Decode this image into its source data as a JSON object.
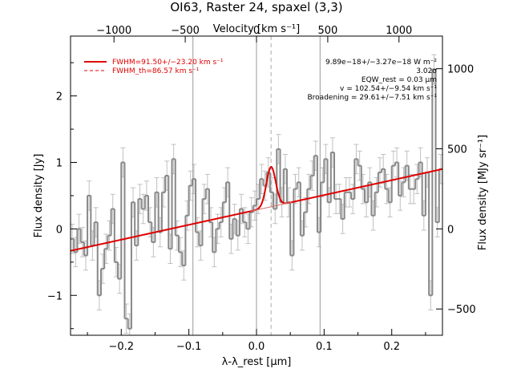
{
  "chart_data": {
    "type": "line",
    "title": "OI63, Raster 24, spaxel (3,3)",
    "xlabel": "λ-λ_rest [μm]",
    "ylabel": "Flux density [Jy]",
    "top_xlabel": "Velocity [km s⁻¹]",
    "right_ylabel": "Flux density [MJy sr⁻¹]",
    "xlim": [
      -0.275,
      0.275
    ],
    "ylim": [
      -1.6,
      2.9
    ],
    "x_ticks": [
      -0.2,
      -0.1,
      0.0,
      0.1,
      0.2
    ],
    "x_tick_labels": [
      "−0.2",
      "−0.1",
      "0.0",
      "0.1",
      "0.2"
    ],
    "y_ticks": [
      -1,
      0,
      1,
      2
    ],
    "y_tick_labels": [
      "−1",
      "0",
      "1",
      "2"
    ],
    "top_ticks_kms": [
      -1000,
      -500,
      0,
      500,
      1000
    ],
    "top_tick_labels": [
      "−1000",
      "−500",
      "0",
      "500",
      "1000"
    ],
    "right_ticks": [
      -500,
      0,
      500,
      1000
    ],
    "right_tick_labels": [
      "−500",
      "0",
      "500",
      "1000"
    ],
    "vertical_lines": [
      -0.094,
      0.0,
      0.094
    ],
    "line_center": 0.0215,
    "legend": [
      {
        "label": "FWHM=91.50+/−23.20 km s⁻¹",
        "style": "solid",
        "color": "#e00000"
      },
      {
        "label": "FWHM_th=86.57 km s⁻¹",
        "style": "dashed",
        "color": "#e00000"
      }
    ],
    "annotations": [
      "9.89e−18+/−3.27e−18 W m⁻²",
      "3.02σ",
      "EQW_rest = 0.03 μm",
      "v = 102.54+/−9.54 km s⁻¹",
      "Broadening = 29.61+/−7.51 km s⁻¹"
    ],
    "continuum": {
      "x": [
        -0.275,
        0.275
      ],
      "y": [
        -0.33,
        0.9
      ]
    },
    "gaussian": {
      "amplitude": 0.6,
      "center": 0.0215,
      "fwhm": 0.0162
    },
    "series": [
      {
        "kind": "spectrum",
        "color": "#888888",
        "x": [
          -0.275,
          -0.27,
          -0.265,
          -0.26,
          -0.255,
          -0.25,
          -0.245,
          -0.24,
          -0.235,
          -0.23,
          -0.225,
          -0.22,
          -0.215,
          -0.21,
          -0.205,
          -0.2,
          -0.195,
          -0.19,
          -0.185,
          -0.18,
          -0.175,
          -0.17,
          -0.165,
          -0.16,
          -0.155,
          -0.15,
          -0.145,
          -0.14,
          -0.135,
          -0.13,
          -0.125,
          -0.12,
          -0.115,
          -0.11,
          -0.105,
          -0.1,
          -0.095,
          -0.09,
          -0.085,
          -0.08,
          -0.075,
          -0.07,
          -0.065,
          -0.06,
          -0.055,
          -0.05,
          -0.045,
          -0.04,
          -0.035,
          -0.03,
          -0.025,
          -0.02,
          -0.015,
          -0.01,
          -0.005,
          0.0,
          0.005,
          0.01,
          0.015,
          0.02,
          0.025,
          0.03,
          0.035,
          0.04,
          0.045,
          0.05,
          0.055,
          0.06,
          0.065,
          0.07,
          0.075,
          0.08,
          0.085,
          0.09,
          0.095,
          0.1,
          0.105,
          0.11,
          0.115,
          0.12,
          0.125,
          0.13,
          0.135,
          0.14,
          0.145,
          0.15,
          0.155,
          0.16,
          0.165,
          0.17,
          0.175,
          0.18,
          0.185,
          0.19,
          0.195,
          0.2,
          0.205,
          0.21,
          0.215,
          0.22,
          0.225,
          0.23,
          0.235,
          0.24,
          0.245,
          0.25,
          0.255,
          0.26,
          0.265,
          0.27
        ],
        "y": [
          -0.15,
          -0.35,
          0.0,
          -0.2,
          -0.4,
          0.5,
          -0.25,
          0.1,
          -1.0,
          -0.6,
          -0.3,
          -0.1,
          0.3,
          -0.5,
          -0.75,
          1.0,
          -1.35,
          -1.5,
          0.4,
          -0.25,
          0.45,
          0.3,
          0.5,
          0.1,
          -0.2,
          0.55,
          -0.05,
          0.55,
          0.8,
          -0.3,
          1.05,
          -0.1,
          -0.35,
          -0.55,
          0.2,
          0.65,
          0.75,
          -0.05,
          -0.25,
          0.45,
          0.6,
          0.1,
          -0.35,
          0.0,
          0.1,
          0.4,
          0.7,
          -0.15,
          0.15,
          -0.1,
          0.3,
          0.1,
          0.0,
          0.25,
          0.35,
          0.45,
          0.75,
          0.65,
          0.85,
          0.55,
          0.3,
          1.2,
          0.4,
          0.9,
          0.4,
          -0.4,
          0.6,
          0.7,
          -0.1,
          0.25,
          0.6,
          0.8,
          1.1,
          -0.05,
          0.7,
          1.05,
          0.4,
          1.15,
          0.45,
          0.45,
          0.15,
          0.55,
          0.55,
          0.45,
          1.05,
          0.95,
          0.6,
          0.4,
          0.7,
          0.2,
          0.55,
          0.85,
          0.9,
          0.6,
          0.4,
          0.95,
          1.0,
          0.5,
          0.7,
          0.95,
          0.6,
          0.6,
          0.75,
          1.0,
          0.2,
          0.85,
          -1.0,
          2.4,
          0.1,
          0.9
        ],
        "err": 0.22
      },
      {
        "kind": "fit",
        "color": "#e00000"
      }
    ]
  }
}
